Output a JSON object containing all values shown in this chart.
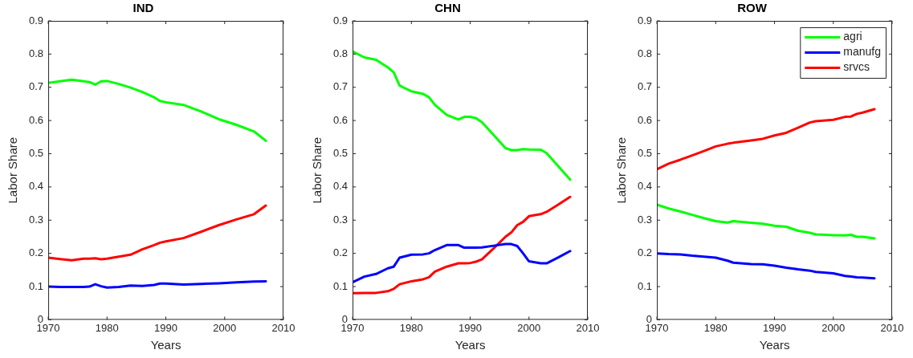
{
  "chart_data": [
    {
      "type": "line",
      "title": "IND",
      "xlabel": "Years",
      "ylabel": "Labor Share",
      "xlim": [
        1970,
        2010
      ],
      "xticks": [
        1970,
        1980,
        1990,
        2000,
        2010
      ],
      "ylim": [
        0,
        0.9
      ],
      "yticks": [
        0,
        0.1,
        0.2,
        0.3,
        0.4,
        0.5,
        0.6,
        0.7,
        0.8,
        0.9
      ],
      "grid": false,
      "legend": false,
      "marker": "none",
      "line_style": "solid",
      "x": [
        1970,
        1972,
        1974,
        1976,
        1977,
        1978,
        1979,
        1980,
        1982,
        1984,
        1986,
        1988,
        1989,
        1990,
        1993,
        1996,
        1999,
        2002,
        2005,
        2007
      ],
      "series": [
        {
          "color": "#00ff00",
          "values": [
            0.713,
            0.718,
            0.723,
            0.718,
            0.716,
            0.708,
            0.718,
            0.719,
            0.71,
            0.699,
            0.686,
            0.67,
            0.659,
            0.655,
            0.647,
            0.627,
            0.604,
            0.587,
            0.567,
            0.539
          ]
        },
        {
          "color": "#0000ff",
          "values": [
            0.1,
            0.099,
            0.099,
            0.099,
            0.1,
            0.107,
            0.101,
            0.097,
            0.099,
            0.103,
            0.102,
            0.105,
            0.109,
            0.109,
            0.106,
            0.108,
            0.11,
            0.113,
            0.115,
            0.116
          ]
        },
        {
          "color": "#ff0000",
          "values": [
            0.187,
            0.183,
            0.179,
            0.184,
            0.184,
            0.185,
            0.182,
            0.184,
            0.19,
            0.196,
            0.212,
            0.225,
            0.232,
            0.236,
            0.246,
            0.265,
            0.285,
            0.302,
            0.318,
            0.344
          ]
        }
      ]
    },
    {
      "type": "line",
      "title": "CHN",
      "xlabel": "Years",
      "ylabel": "Labor Share",
      "xlim": [
        1970,
        2010
      ],
      "xticks": [
        1970,
        1980,
        1990,
        2000,
        2010
      ],
      "ylim": [
        0,
        0.9
      ],
      "yticks": [
        0,
        0.1,
        0.2,
        0.3,
        0.4,
        0.5,
        0.6,
        0.7,
        0.8,
        0.9
      ],
      "grid": false,
      "legend": false,
      "marker": "none",
      "line_style": "solid",
      "x": [
        1970,
        1972,
        1974,
        1976,
        1977,
        1978,
        1980,
        1982,
        1983,
        1984,
        1986,
        1988,
        1989,
        1990,
        1991,
        1992,
        1994,
        1996,
        1997,
        1998,
        1999,
        2000,
        2002,
        2003,
        2005,
        2007
      ],
      "series": [
        {
          "color": "#00ff00",
          "values": [
            0.808,
            0.79,
            0.783,
            0.76,
            0.745,
            0.705,
            0.688,
            0.68,
            0.67,
            0.647,
            0.617,
            0.603,
            0.611,
            0.611,
            0.607,
            0.595,
            0.556,
            0.517,
            0.511,
            0.511,
            0.514,
            0.513,
            0.512,
            0.502,
            0.462,
            0.422
          ]
        },
        {
          "color": "#0000ff",
          "values": [
            0.113,
            0.13,
            0.138,
            0.155,
            0.16,
            0.187,
            0.196,
            0.197,
            0.2,
            0.21,
            0.225,
            0.225,
            0.217,
            0.217,
            0.217,
            0.218,
            0.223,
            0.228,
            0.228,
            0.222,
            0.2,
            0.176,
            0.17,
            0.17,
            0.188,
            0.207
          ]
        },
        {
          "color": "#ff0000",
          "values": [
            0.08,
            0.081,
            0.081,
            0.086,
            0.093,
            0.107,
            0.116,
            0.122,
            0.128,
            0.145,
            0.16,
            0.17,
            0.17,
            0.171,
            0.175,
            0.182,
            0.215,
            0.25,
            0.263,
            0.285,
            0.295,
            0.312,
            0.318,
            0.325,
            0.347,
            0.37
          ]
        }
      ]
    },
    {
      "type": "line",
      "title": "ROW",
      "xlabel": "Years",
      "ylabel": "Labor Share",
      "xlim": [
        1970,
        2010
      ],
      "xticks": [
        1970,
        1980,
        1990,
        2000,
        2010
      ],
      "ylim": [
        0,
        0.9
      ],
      "yticks": [
        0,
        0.1,
        0.2,
        0.3,
        0.4,
        0.5,
        0.6,
        0.7,
        0.8,
        0.9
      ],
      "grid": false,
      "legend": "top right",
      "marker": "none",
      "line_style": "solid",
      "x": [
        1970,
        1972,
        1974,
        1976,
        1978,
        1980,
        1982,
        1983,
        1986,
        1988,
        1990,
        1992,
        1994,
        1996,
        1997,
        2000,
        2002,
        2003,
        2004,
        2005,
        2007
      ],
      "series": [
        {
          "name": "agri",
          "color": "#00ff00",
          "values": [
            0.347,
            0.335,
            0.326,
            0.316,
            0.306,
            0.297,
            0.293,
            0.297,
            0.292,
            0.289,
            0.283,
            0.28,
            0.268,
            0.262,
            0.257,
            0.255,
            0.254,
            0.256,
            0.25,
            0.25,
            0.245
          ]
        },
        {
          "name": "manufg",
          "color": "#0000ff",
          "values": [
            0.2,
            0.198,
            0.197,
            0.193,
            0.19,
            0.187,
            0.178,
            0.172,
            0.168,
            0.167,
            0.163,
            0.157,
            0.152,
            0.148,
            0.144,
            0.14,
            0.132,
            0.13,
            0.128,
            0.127,
            0.125
          ]
        },
        {
          "name": "srvcs",
          "color": "#ff0000",
          "values": [
            0.453,
            0.47,
            0.482,
            0.495,
            0.508,
            0.522,
            0.53,
            0.533,
            0.54,
            0.545,
            0.555,
            0.563,
            0.578,
            0.594,
            0.598,
            0.602,
            0.611,
            0.612,
            0.62,
            0.624,
            0.634
          ]
        }
      ]
    }
  ]
}
